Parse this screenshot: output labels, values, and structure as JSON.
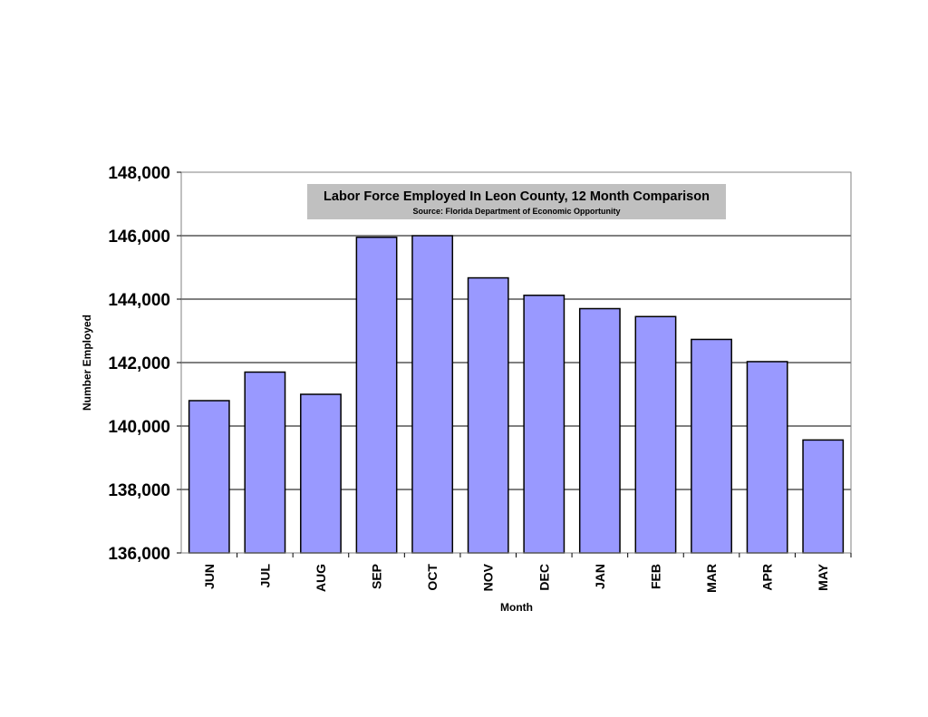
{
  "chart_data": {
    "type": "bar",
    "title": "Labor Force Employed In Leon County, 12 Month Comparison",
    "subtitle": "Source: Florida Department of Economic Opportunity",
    "xlabel": "Month",
    "ylabel": "Number Employed",
    "categories": [
      "JUN",
      "JUL",
      "AUG",
      "SEP",
      "OCT",
      "NOV",
      "DEC",
      "JAN",
      "FEB",
      "MAR",
      "APR",
      "MAY"
    ],
    "values": [
      140800,
      141700,
      141000,
      145950,
      146000,
      144670,
      144120,
      143700,
      143450,
      142730,
      142030,
      139560
    ],
    "ylim": [
      136000,
      148000
    ],
    "yticks": [
      136000,
      138000,
      140000,
      142000,
      144000,
      146000,
      148000
    ],
    "ytick_labels": [
      "136,000",
      "138,000",
      "140,000",
      "142,000",
      "144,000",
      "146,000",
      "148,000"
    ],
    "grid": true,
    "legend": "none",
    "colors": {
      "bar_fill": "#9999FF",
      "bar_stroke": "#000000",
      "title_box": "#C0C0C0",
      "gridline": "#000000"
    }
  }
}
